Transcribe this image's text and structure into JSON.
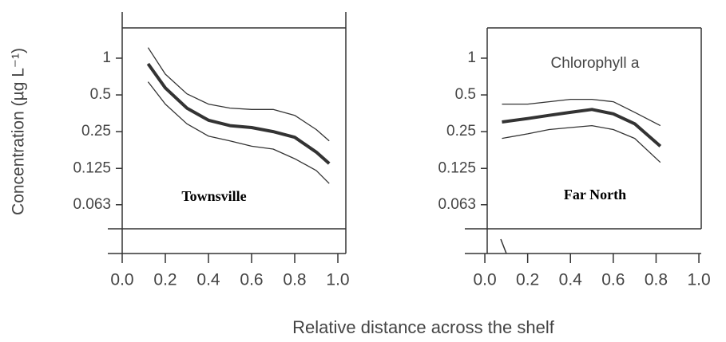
{
  "ylabel": "Concentration (µg L⁻¹)",
  "xlabel": "Relative distance across the shelf",
  "chart_data": [
    {
      "type": "line",
      "annotation": "Townsville",
      "xlim": [
        0,
        1.037
      ],
      "ylim": [
        0.04,
        1.77
      ],
      "log_y": true,
      "xticks": [
        {
          "value": 0,
          "label": "0.0"
        },
        0.2,
        0.4,
        0.6,
        0.8,
        {
          "value": 1,
          "label": "1.0"
        }
      ],
      "yticks": [
        1,
        0.5,
        0.25,
        0.125,
        0.063
      ],
      "x": [
        0.12,
        0.2,
        0.3,
        0.4,
        0.5,
        0.6,
        0.7,
        0.8,
        0.9,
        0.96
      ],
      "series": [
        {
          "color": "#333333",
          "values": [
            0.9,
            0.57,
            0.39,
            0.31,
            0.28,
            0.27,
            0.25,
            0.225,
            0.17,
            0.137
          ]
        },
        {
          "color": "#333333",
          "values": [
            1.22,
            0.74,
            0.51,
            0.42,
            0.39,
            0.38,
            0.38,
            0.34,
            0.26,
            0.21
          ]
        },
        {
          "color": "#333333",
          "values": [
            0.64,
            0.42,
            0.29,
            0.23,
            0.21,
            0.19,
            0.18,
            0.15,
            0.12,
            0.094
          ]
        }
      ]
    },
    {
      "type": "line",
      "title": "Chlorophyll a",
      "annotation": "Far North",
      "xlim": [
        0.011,
        1.011
      ],
      "ylim": [
        0.04,
        1.77
      ],
      "log_y": true,
      "xticks": [
        {
          "value": 0,
          "label": "0.0"
        },
        0.2,
        0.4,
        0.6,
        0.8,
        {
          "value": 1,
          "label": "1.0"
        }
      ],
      "yticks": [
        1,
        0.5,
        0.25,
        0.125,
        0.063
      ],
      "x": [
        0.08,
        0.2,
        0.3,
        0.4,
        0.5,
        0.6,
        0.7,
        0.82
      ],
      "series": [
        {
          "color": "#333333",
          "values": [
            0.3,
            0.32,
            0.34,
            0.36,
            0.38,
            0.35,
            0.29,
            0.19
          ]
        },
        {
          "color": "#333333",
          "values": [
            0.42,
            0.42,
            0.44,
            0.46,
            0.46,
            0.44,
            0.36,
            0.28
          ]
        },
        {
          "color": "#333333",
          "values": [
            0.22,
            0.24,
            0.26,
            0.27,
            0.28,
            0.26,
            0.22,
            0.14
          ]
        }
      ]
    }
  ]
}
